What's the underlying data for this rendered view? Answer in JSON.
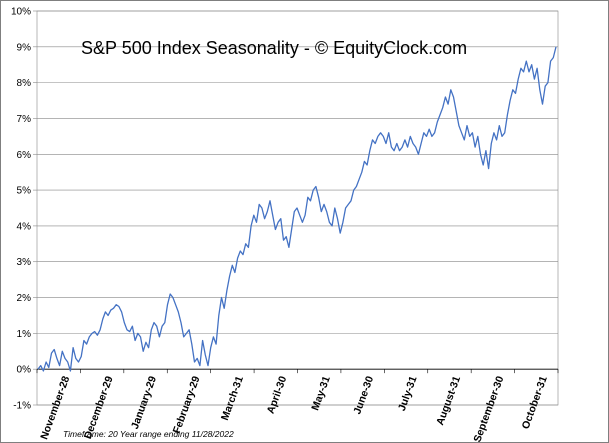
{
  "chart_data": {
    "type": "line",
    "title": "S&P 500 Index Seasonality - © EquityClock.com",
    "footnote": "Timeframe: 20 Year range ending 11/28/2022",
    "ylabel": "",
    "xlabel": "",
    "ylim": [
      -1,
      10
    ],
    "y_ticks": [
      "-1%",
      "0%",
      "1%",
      "2%",
      "3%",
      "4%",
      "5%",
      "6%",
      "7%",
      "8%",
      "9%",
      "10%"
    ],
    "x_ticks": [
      "November-28",
      "December-29",
      "January-29",
      "February-29",
      "March-31",
      "April-30",
      "May-31",
      "June-30",
      "July-31",
      "August-31",
      "September-30",
      "October-31"
    ],
    "grid": true,
    "series": [
      {
        "name": "S&P 500 Index",
        "color": "#4472c4",
        "values": [
          0.0,
          0.1,
          -0.05,
          0.2,
          0.05,
          0.45,
          0.55,
          0.3,
          0.1,
          0.5,
          0.3,
          0.2,
          -0.05,
          0.6,
          0.3,
          0.2,
          0.35,
          0.8,
          0.7,
          0.9,
          1.0,
          1.05,
          0.95,
          1.1,
          1.4,
          1.6,
          1.5,
          1.65,
          1.7,
          1.8,
          1.75,
          1.6,
          1.3,
          1.1,
          1.05,
          1.2,
          0.8,
          1.0,
          0.9,
          0.5,
          0.75,
          0.6,
          1.1,
          1.3,
          1.2,
          0.9,
          1.2,
          1.3,
          1.8,
          2.1,
          2.0,
          1.8,
          1.6,
          1.3,
          0.9,
          1.0,
          1.1,
          0.7,
          0.2,
          0.3,
          0.1,
          0.8,
          0.4,
          0.1,
          0.6,
          0.9,
          0.7,
          1.5,
          2.0,
          1.7,
          2.2,
          2.6,
          2.9,
          2.7,
          3.1,
          3.3,
          3.2,
          3.5,
          3.4,
          4.0,
          4.3,
          4.1,
          4.6,
          4.5,
          4.2,
          4.4,
          4.7,
          4.3,
          3.9,
          4.1,
          4.2,
          3.6,
          3.7,
          3.4,
          3.9,
          4.4,
          4.5,
          4.3,
          4.1,
          4.3,
          4.8,
          4.7,
          5.0,
          5.1,
          4.8,
          4.4,
          4.6,
          4.4,
          4.1,
          4.0,
          4.5,
          4.2,
          3.8,
          4.1,
          4.5,
          4.6,
          4.7,
          5.0,
          5.1,
          5.3,
          5.5,
          5.8,
          5.7,
          6.1,
          6.4,
          6.3,
          6.5,
          6.6,
          6.5,
          6.3,
          6.6,
          6.2,
          6.1,
          6.3,
          6.1,
          6.2,
          6.4,
          6.2,
          6.5,
          6.3,
          6.2,
          6.0,
          6.3,
          6.6,
          6.5,
          6.7,
          6.5,
          6.6,
          6.9,
          7.1,
          7.3,
          7.6,
          7.4,
          7.8,
          7.6,
          7.2,
          6.8,
          6.6,
          6.4,
          6.8,
          6.5,
          6.6,
          6.2,
          6.5,
          6.0,
          5.7,
          6.1,
          5.6,
          6.3,
          6.6,
          6.4,
          6.8,
          6.5,
          6.6,
          7.1,
          7.5,
          7.8,
          7.7,
          8.1,
          8.4,
          8.3,
          8.6,
          8.3,
          8.5,
          8.1,
          8.4,
          7.8,
          7.4,
          7.9,
          8.0,
          8.6,
          8.7,
          9.0
        ]
      }
    ]
  }
}
